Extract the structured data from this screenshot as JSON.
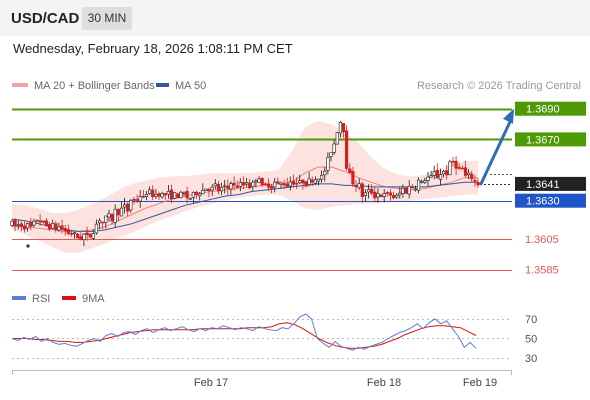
{
  "header": {
    "symbol": "USD/CAD",
    "timeframe": "30 MIN"
  },
  "timestamp": "Wednesday, February 18, 2026 1:08:11 PM CET",
  "copyright": "Research © 2026 Trading Central",
  "legend": {
    "bollinger": {
      "label": "MA 20 + Bollinger Bands",
      "color": "#f08080"
    },
    "ma50": {
      "label": "MA 50",
      "color": "#2f5a9e"
    },
    "rsi": {
      "label": "RSI",
      "color": "#5b7fd4"
    },
    "rsi_ma": {
      "label": "9MA",
      "color": "#dd1111"
    }
  },
  "chart_data": [
    {
      "type": "candlestick",
      "title": "USD/CAD 30 MIN",
      "x_ticks": [
        "Feb 17",
        "Feb 18",
        "Feb 19"
      ],
      "ylim": [
        1.3577,
        1.3697
      ],
      "levels": [
        {
          "value": "1.3690",
          "kind": "resistance",
          "color": "#4e9a06"
        },
        {
          "value": "1.3670",
          "kind": "resistance",
          "color": "#4e9a06"
        },
        {
          "value": "1.3641",
          "kind": "last price",
          "color": "#222222"
        },
        {
          "value": "1.3630",
          "kind": "pivot",
          "color": "#1f55c9"
        },
        {
          "value": "1.3605",
          "kind": "support",
          "color": "#e05a5a"
        },
        {
          "value": "1.3585",
          "kind": "support",
          "color": "#e05a5a"
        }
      ],
      "close_path": [
        1.3615,
        1.3613,
        1.3615,
        1.3613,
        1.3614,
        1.3612,
        1.3618,
        1.3617,
        1.3615,
        1.3613,
        1.3614,
        1.3612,
        1.3613,
        1.3611,
        1.3609,
        1.3609,
        1.3607,
        1.3605,
        1.3608,
        1.3606,
        1.3608,
        1.3614,
        1.3618,
        1.3615,
        1.3621,
        1.3617,
        1.3624,
        1.3622,
        1.3627,
        1.3623,
        1.3632,
        1.3629,
        1.3634,
        1.3631,
        1.3637,
        1.3634,
        1.3634,
        1.3635,
        1.3633,
        1.3635,
        1.3633,
        1.3634,
        1.3633,
        1.3635,
        1.3632,
        1.3632,
        1.3635,
        1.3636,
        1.3637,
        1.3639,
        1.3637,
        1.364,
        1.3636,
        1.3639,
        1.3637,
        1.3643,
        1.3638,
        1.3641,
        1.364,
        1.3643,
        1.3638,
        1.3644,
        1.3646,
        1.3637,
        1.3642,
        1.3639,
        1.3642,
        1.364,
        1.3642,
        1.364,
        1.3643,
        1.3642,
        1.3641,
        1.3643,
        1.3641,
        1.3644,
        1.3644,
        1.3646,
        1.3645,
        1.3654,
        1.3662,
        1.3668,
        1.368,
        1.3684,
        1.3653,
        1.3645,
        1.364,
        1.3641,
        1.3633,
        1.3635,
        1.3637,
        1.3633,
        1.3635,
        1.3633,
        1.3634,
        1.3634,
        1.3632,
        1.3633,
        1.3638,
        1.3636,
        1.364,
        1.3638,
        1.3643,
        1.3641,
        1.3646,
        1.3644,
        1.3648,
        1.3645,
        1.365,
        1.3647,
        1.3654,
        1.3656,
        1.365,
        1.3651,
        1.3645,
        1.3647,
        1.3643,
        1.3641
      ],
      "ma20_path": [
        1.3613,
        1.3613,
        1.3612,
        1.3611,
        1.361,
        1.361,
        1.3611,
        1.3613,
        1.3617,
        1.3621,
        1.3625,
        1.3628,
        1.3631,
        1.3633,
        1.3635,
        1.3636,
        1.3637,
        1.3638,
        1.3639,
        1.364,
        1.3641,
        1.3642,
        1.3648,
        1.3652,
        1.3652,
        1.3649,
        1.3645,
        1.3642,
        1.3639,
        1.3638,
        1.3637,
        1.3638,
        1.364,
        1.3642,
        1.3645,
        1.3645
      ],
      "ma50_path": [
        1.3618,
        1.3617,
        1.3615,
        1.3613,
        1.3611,
        1.361,
        1.361,
        1.3611,
        1.3613,
        1.3615,
        1.3618,
        1.3621,
        1.3624,
        1.3627,
        1.3629,
        1.3631,
        1.3633,
        1.3634,
        1.3636,
        1.3637,
        1.3638,
        1.3639,
        1.364,
        1.3641,
        1.3641,
        1.364,
        1.364,
        1.3639,
        1.3639,
        1.3639,
        1.3639,
        1.3639,
        1.364,
        1.3641,
        1.3642,
        1.3642
      ],
      "band_upper": [
        1.3628,
        1.3627,
        1.3625,
        1.3622,
        1.3622,
        1.3624,
        1.3628,
        1.3632,
        1.3637,
        1.3641,
        1.3643,
        1.3645,
        1.3646,
        1.3646,
        1.3647,
        1.3648,
        1.3648,
        1.3648,
        1.3648,
        1.3649,
        1.365,
        1.3662,
        1.3678,
        1.3682,
        1.368,
        1.3675,
        1.3668,
        1.3658,
        1.3651,
        1.3647,
        1.3646,
        1.3647,
        1.365,
        1.3654,
        1.3656,
        1.3656
      ],
      "band_lower": [
        1.3611,
        1.3608,
        1.3604,
        1.36,
        1.3596,
        1.3596,
        1.3599,
        1.3602,
        1.3606,
        1.3609,
        1.3613,
        1.3617,
        1.362,
        1.3623,
        1.3626,
        1.3628,
        1.363,
        1.3632,
        1.3633,
        1.3634,
        1.3634,
        1.363,
        1.3625,
        1.3624,
        1.3626,
        1.3627,
        1.3628,
        1.3628,
        1.3629,
        1.3629,
        1.363,
        1.3631,
        1.3632,
        1.3633,
        1.3634,
        1.3634
      ],
      "projection": {
        "from": 1.3641,
        "to": 1.369
      }
    },
    {
      "type": "line",
      "title": "RSI",
      "ylim": [
        26,
        76
      ],
      "y_ticks": [
        "70",
        "50",
        "30"
      ],
      "series": [
        {
          "name": "RSI",
          "values": [
            50,
            48,
            51,
            49,
            52,
            47,
            50,
            46,
            44,
            45,
            43,
            42,
            45,
            48,
            50,
            47,
            53,
            55,
            52,
            56,
            57,
            54,
            58,
            60,
            56,
            59,
            61,
            58,
            60,
            62,
            59,
            57,
            60,
            58,
            61,
            60,
            63,
            61,
            59,
            61,
            60,
            58,
            62,
            60,
            59,
            58,
            61,
            60,
            65,
            72,
            75,
            70,
            50,
            45,
            41,
            47,
            42,
            40,
            38,
            41,
            39,
            42,
            44,
            46,
            50,
            53,
            56,
            58,
            61,
            65,
            60,
            66,
            70,
            65,
            68,
            60,
            52,
            41,
            46,
            40
          ]
        },
        {
          "name": "9MA",
          "values": [
            50,
            50,
            50,
            49,
            49,
            48,
            47,
            47,
            46,
            46,
            47,
            48,
            50,
            52,
            54,
            56,
            57,
            58,
            59,
            59,
            59,
            59,
            59,
            59,
            60,
            60,
            60,
            60,
            60,
            60,
            61,
            61,
            61,
            62,
            65,
            66,
            64,
            60,
            55,
            50,
            46,
            43,
            41,
            40,
            40,
            41,
            42,
            44,
            47,
            50,
            54,
            57,
            60,
            62,
            63,
            63,
            62,
            61,
            57,
            53
          ]
        }
      ]
    }
  ]
}
